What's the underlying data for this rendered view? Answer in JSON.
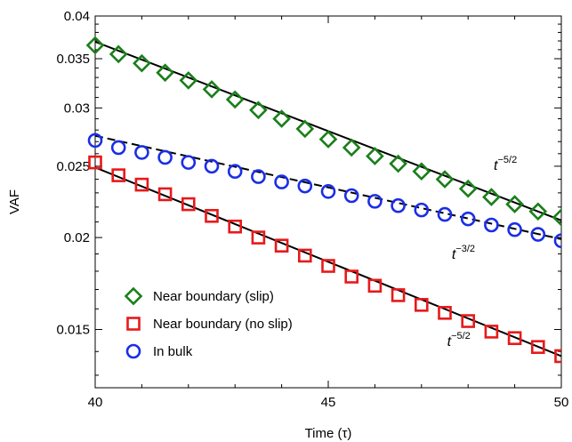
{
  "chart_data": {
    "type": "scatter",
    "title": "",
    "xlabel": "Time (τ)",
    "ylabel": "VAF",
    "xlim": [
      40,
      50
    ],
    "ylim": [
      0.0125,
      0.04
    ],
    "yscale": "log",
    "x_ticks": [
      {
        "value": 40,
        "label": "40"
      },
      {
        "value": 45,
        "label": "45"
      },
      {
        "value": 50,
        "label": "50"
      }
    ],
    "y_ticks": [
      {
        "value": 0.015,
        "label": "0.015"
      },
      {
        "value": 0.02,
        "label": "0.02"
      },
      {
        "value": 0.025,
        "label": "0.025"
      },
      {
        "value": 0.03,
        "label": "0.03"
      },
      {
        "value": 0.035,
        "label": "0.035"
      },
      {
        "value": 0.04,
        "label": "0.04"
      }
    ],
    "grid": false,
    "legend_position": "bottom-left",
    "x": [
      40,
      40.5,
      41,
      41.5,
      42,
      42.5,
      43,
      43.5,
      44,
      44.5,
      45,
      45.5,
      46,
      46.5,
      47,
      47.5,
      48,
      48.5,
      49,
      49.5,
      50
    ],
    "series": [
      {
        "name": "Near boundary (slip)",
        "marker": "diamond",
        "color": "#1a7f1a",
        "values": [
          0.0365,
          0.0355,
          0.0345,
          0.0335,
          0.0327,
          0.0318,
          0.0308,
          0.0298,
          0.029,
          0.0281,
          0.0272,
          0.0265,
          0.0258,
          0.0252,
          0.0246,
          0.024,
          0.0233,
          0.0227,
          0.0222,
          0.0217,
          0.0213
        ]
      },
      {
        "name": "Near boundary (no slip)",
        "marker": "square",
        "color": "#e8191a",
        "values": [
          0.0253,
          0.0243,
          0.0236,
          0.0229,
          0.0222,
          0.0214,
          0.0207,
          0.02,
          0.0195,
          0.0189,
          0.0183,
          0.0177,
          0.0172,
          0.0167,
          0.0162,
          0.0158,
          0.0154,
          0.0149,
          0.0146,
          0.0142,
          0.0138
        ]
      },
      {
        "name": "In bulk",
        "marker": "circle",
        "color": "#1a2ee6",
        "values": [
          0.0271,
          0.0265,
          0.0261,
          0.0257,
          0.0253,
          0.025,
          0.0246,
          0.0242,
          0.0238,
          0.0235,
          0.0231,
          0.0228,
          0.0224,
          0.0221,
          0.0218,
          0.0215,
          0.0212,
          0.0208,
          0.0205,
          0.0202,
          0.0198
        ]
      }
    ],
    "fit_lines": [
      {
        "style": "solid",
        "color": "#000000",
        "from": [
          40,
          0.0369
        ],
        "to": [
          50,
          0.0211
        ]
      },
      {
        "style": "dashed",
        "color": "#000000",
        "from": [
          40,
          0.0275
        ],
        "to": [
          50,
          0.0199
        ]
      },
      {
        "style": "solid",
        "color": "#000000",
        "from": [
          40,
          0.0249
        ],
        "to": [
          50,
          0.0138
        ]
      }
    ],
    "annotations": [
      {
        "base": "t",
        "exponent": "−5/2",
        "x": 48.55,
        "y": 0.0247
      },
      {
        "base": "t",
        "exponent": "−3/2",
        "x": 47.65,
        "y": 0.0187
      },
      {
        "base": "t",
        "exponent": "−5/2",
        "x": 47.55,
        "y": 0.01425
      }
    ]
  }
}
